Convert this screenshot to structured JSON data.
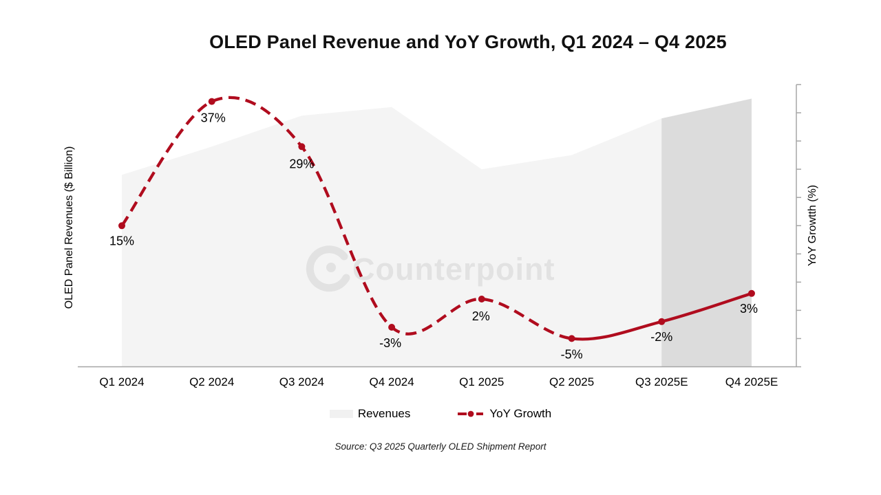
{
  "title": "OLED Panel Revenue and YoY Growth, Q1 2024 – Q4 2025",
  "watermark": {
    "text": "Counterpoint"
  },
  "axes": {
    "left_label": "OLED Panel Revenues ($ Billion)",
    "right_label": "YoY Growtth (%)"
  },
  "legend": {
    "revenues_label": "Revenues",
    "yoy_label": "YoY Growth"
  },
  "source": "Source: Q3 2025 Quarterly OLED Shipment Report",
  "colors": {
    "accent_red": "#b00c1e",
    "area_light": "#f4f4f4",
    "area_forecast": "#dcdcdc",
    "axis_gray": "#a6a6a6",
    "watermark_gray": "#e2e2e2",
    "label_black": "#000000"
  },
  "chart_data": {
    "type": "combo (area + smoothed line)",
    "categories": [
      "Q1 2024",
      "Q2 2024",
      "Q3 2024",
      "Q4 2024",
      "Q1 2025",
      "Q2 2025",
      "Q3 2025E",
      "Q4 2025E"
    ],
    "series": [
      {
        "name": "Revenues",
        "type": "area",
        "axis": "left",
        "unit": "relative height, left axis unlabeled (0–1 of plot height)",
        "values": [
          0.68,
          0.78,
          0.89,
          0.92,
          0.7,
          0.75,
          0.88,
          0.95
        ],
        "forecast_from_index": 6
      },
      {
        "name": "YoY Growth",
        "type": "line",
        "axis": "right",
        "unit": "%",
        "values": [
          15,
          37,
          29,
          -3,
          2,
          -5,
          -2,
          3
        ],
        "data_labels": [
          "15%",
          "37%",
          "29%",
          "-3%",
          "2%",
          "-5%",
          "-2%",
          "3%"
        ],
        "dashed_until_index": 5,
        "solid_from_index": 5
      }
    ],
    "right_axis_range": [
      -10,
      40
    ],
    "right_axis_tick_step": 5,
    "gridlines": false,
    "legend_position": "bottom",
    "notes": "Q3 2025E / Q4 2025E are estimates shaded darker; YoY line solid for estimate span"
  }
}
